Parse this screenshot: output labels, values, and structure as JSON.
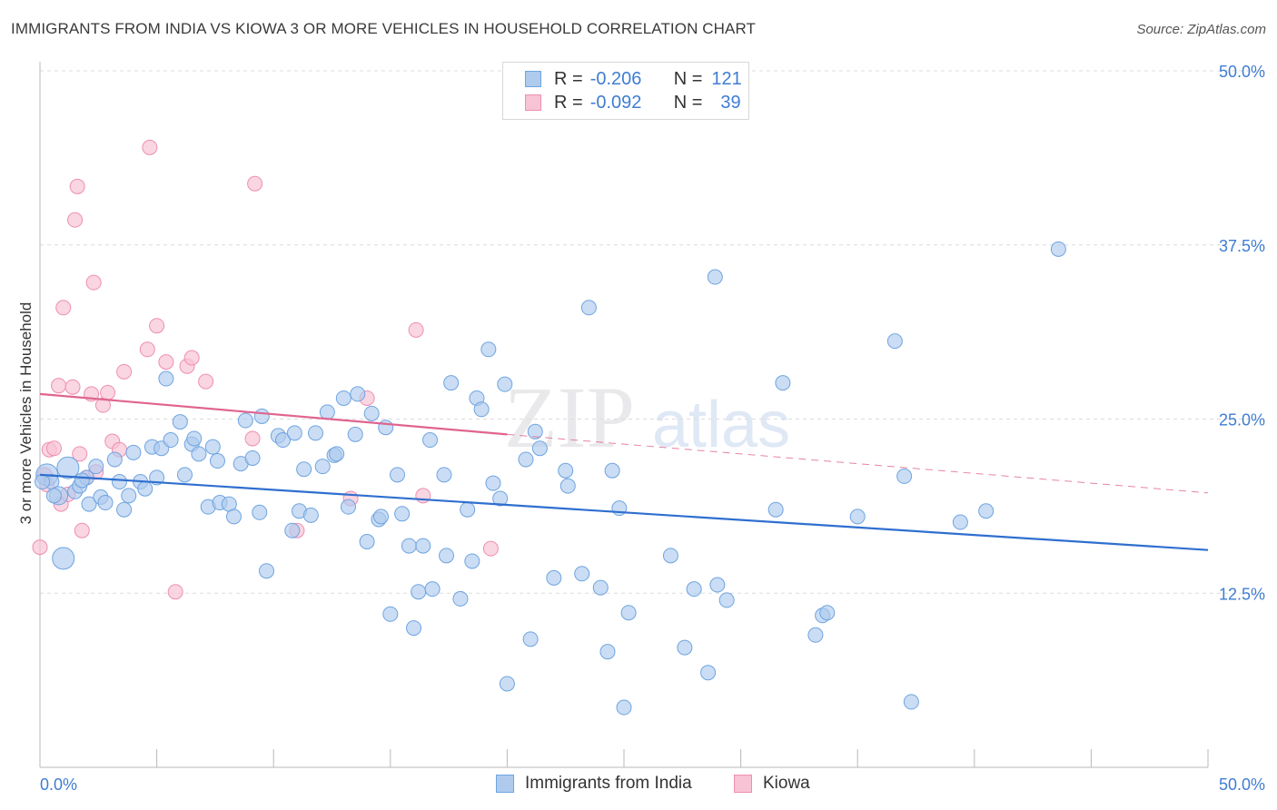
{
  "title": "IMMIGRANTS FROM INDIA VS KIOWA 3 OR MORE VEHICLES IN HOUSEHOLD CORRELATION CHART",
  "source": "Source: ZipAtlas.com",
  "watermark": {
    "zip": "ZIP",
    "atlas": "atlas"
  },
  "legend": {
    "r_label": "R =",
    "n_label": "N =",
    "rows": [
      {
        "r": "-0.206",
        "n": "121",
        "color": "#6fa4e0"
      },
      {
        "r": "-0.092",
        "n": "39",
        "color": "#ee8fb0"
      }
    ]
  },
  "bottom_legend": [
    "Immigrants from India",
    "Kiowa"
  ],
  "colors": {
    "india_fill": "#aecbee",
    "india_stroke": "#6fa4e0",
    "india_line": "#2f6fcf",
    "kiowa_fill": "#f8c3d5",
    "kiowa_stroke": "#ee8fb0",
    "kiowa_line": "#e0648f",
    "tick_label": "#3f7dd2",
    "grid": "#dcdcdc"
  },
  "chart_data": {
    "type": "scatter",
    "title": "IMMIGRANTS FROM INDIA VS KIOWA 3 OR MORE VEHICLES IN HOUSEHOLD CORRELATION CHART",
    "xlabel": "",
    "ylabel": "3 or more Vehicles in Household",
    "xlim": [
      0,
      50
    ],
    "ylim": [
      0,
      50
    ],
    "x_tick_labels": [
      "0.0%",
      "50.0%"
    ],
    "y_ticks": [
      12.5,
      25.0,
      37.5,
      50.0
    ],
    "y_tick_labels": [
      "12.5%",
      "25.0%",
      "37.5%",
      "50.0%"
    ],
    "grid": true,
    "legend_position": "top-center",
    "series": [
      {
        "name": "Immigrants from India",
        "r": -0.206,
        "n": 121,
        "trend": {
          "x": [
            0,
            50
          ],
          "y": [
            21.0,
            15.6
          ]
        },
        "points": [
          [
            0.3,
            21.0
          ],
          [
            0.5,
            20.5
          ],
          [
            0.8,
            19.5
          ],
          [
            1.0,
            15.0
          ],
          [
            1.2,
            21.5
          ],
          [
            1.5,
            19.8
          ],
          [
            1.7,
            20.2
          ],
          [
            2.0,
            20.8
          ],
          [
            2.1,
            18.9
          ],
          [
            2.4,
            21.6
          ],
          [
            2.6,
            19.4
          ],
          [
            2.8,
            19.0
          ],
          [
            3.2,
            22.1
          ],
          [
            3.4,
            20.5
          ],
          [
            3.6,
            18.5
          ],
          [
            3.8,
            19.5
          ],
          [
            4.0,
            22.6
          ],
          [
            4.3,
            20.5
          ],
          [
            4.5,
            20.0
          ],
          [
            4.8,
            23.0
          ],
          [
            5.0,
            20.8
          ],
          [
            5.2,
            22.9
          ],
          [
            5.4,
            27.9
          ],
          [
            5.6,
            23.5
          ],
          [
            6.0,
            24.8
          ],
          [
            6.2,
            21.0
          ],
          [
            6.5,
            23.2
          ],
          [
            6.6,
            23.6
          ],
          [
            6.8,
            22.5
          ],
          [
            7.2,
            18.7
          ],
          [
            7.4,
            23.0
          ],
          [
            7.6,
            22.0
          ],
          [
            7.7,
            19.0
          ],
          [
            8.1,
            18.9
          ],
          [
            8.3,
            18.0
          ],
          [
            8.6,
            21.8
          ],
          [
            8.8,
            24.9
          ],
          [
            9.1,
            22.2
          ],
          [
            9.4,
            18.3
          ],
          [
            9.5,
            25.2
          ],
          [
            9.7,
            14.1
          ],
          [
            10.2,
            23.8
          ],
          [
            10.4,
            23.5
          ],
          [
            10.8,
            17.0
          ],
          [
            10.9,
            24.0
          ],
          [
            11.1,
            18.4
          ],
          [
            11.3,
            21.4
          ],
          [
            11.6,
            18.1
          ],
          [
            11.8,
            24.0
          ],
          [
            12.1,
            21.6
          ],
          [
            12.3,
            25.5
          ],
          [
            12.6,
            22.4
          ],
          [
            12.7,
            22.5
          ],
          [
            13.0,
            26.5
          ],
          [
            13.2,
            18.7
          ],
          [
            13.5,
            23.9
          ],
          [
            13.6,
            26.8
          ],
          [
            14.0,
            16.2
          ],
          [
            14.2,
            25.4
          ],
          [
            14.5,
            17.8
          ],
          [
            14.6,
            18.0
          ],
          [
            14.8,
            24.4
          ],
          [
            15.0,
            11.0
          ],
          [
            15.3,
            21.0
          ],
          [
            15.5,
            18.2
          ],
          [
            15.8,
            15.9
          ],
          [
            16.0,
            10.0
          ],
          [
            16.2,
            12.6
          ],
          [
            16.4,
            15.9
          ],
          [
            16.7,
            23.5
          ],
          [
            16.8,
            12.8
          ],
          [
            17.3,
            21.0
          ],
          [
            17.4,
            15.2
          ],
          [
            17.6,
            27.6
          ],
          [
            18.0,
            12.1
          ],
          [
            18.3,
            18.5
          ],
          [
            18.5,
            14.8
          ],
          [
            18.7,
            26.5
          ],
          [
            18.9,
            25.7
          ],
          [
            19.2,
            30.0
          ],
          [
            19.4,
            20.4
          ],
          [
            19.7,
            19.3
          ],
          [
            19.9,
            27.5
          ],
          [
            20.0,
            6.0
          ],
          [
            20.8,
            22.1
          ],
          [
            21.0,
            9.2
          ],
          [
            21.2,
            24.1
          ],
          [
            21.4,
            22.9
          ],
          [
            22.0,
            13.6
          ],
          [
            22.5,
            21.3
          ],
          [
            22.6,
            20.2
          ],
          [
            23.2,
            13.9
          ],
          [
            23.5,
            33.0
          ],
          [
            24.0,
            12.9
          ],
          [
            24.3,
            8.3
          ],
          [
            24.5,
            21.3
          ],
          [
            24.8,
            18.6
          ],
          [
            25.0,
            4.3
          ],
          [
            25.2,
            11.1
          ],
          [
            27.0,
            15.2
          ],
          [
            27.6,
            8.6
          ],
          [
            28.0,
            12.8
          ],
          [
            28.6,
            6.8
          ],
          [
            28.9,
            35.2
          ],
          [
            29.0,
            13.1
          ],
          [
            29.4,
            12.0
          ],
          [
            31.5,
            18.5
          ],
          [
            31.8,
            27.6
          ],
          [
            33.2,
            9.5
          ],
          [
            33.5,
            10.9
          ],
          [
            33.7,
            11.1
          ],
          [
            35.0,
            18.0
          ],
          [
            36.6,
            30.6
          ],
          [
            37.0,
            20.9
          ],
          [
            37.3,
            4.7
          ],
          [
            39.4,
            17.6
          ],
          [
            40.5,
            18.4
          ],
          [
            43.6,
            37.2
          ],
          [
            0.1,
            20.5
          ],
          [
            0.6,
            19.5
          ],
          [
            1.8,
            20.6
          ]
        ]
      },
      {
        "name": "Kiowa",
        "r": -0.092,
        "n": 39,
        "trend": {
          "x": [
            0,
            20
          ],
          "y": [
            26.8,
            23.9
          ]
        },
        "trend_dashed": {
          "x": [
            20,
            50
          ],
          "y": [
            23.9,
            19.7
          ]
        },
        "points": [
          [
            0.0,
            15.8
          ],
          [
            0.2,
            21.0
          ],
          [
            0.4,
            22.8
          ],
          [
            0.6,
            22.9
          ],
          [
            0.8,
            27.4
          ],
          [
            0.9,
            18.9
          ],
          [
            1.0,
            33.0
          ],
          [
            1.2,
            19.6
          ],
          [
            1.4,
            27.3
          ],
          [
            1.5,
            39.3
          ],
          [
            1.6,
            41.7
          ],
          [
            1.7,
            22.5
          ],
          [
            1.8,
            17.0
          ],
          [
            2.0,
            20.8
          ],
          [
            2.2,
            26.8
          ],
          [
            2.3,
            34.8
          ],
          [
            2.4,
            21.2
          ],
          [
            2.7,
            26.0
          ],
          [
            2.9,
            26.9
          ],
          [
            3.1,
            23.4
          ],
          [
            3.4,
            22.8
          ],
          [
            3.6,
            28.4
          ],
          [
            4.6,
            30.0
          ],
          [
            4.7,
            44.5
          ],
          [
            5.0,
            31.7
          ],
          [
            5.4,
            29.1
          ],
          [
            5.8,
            12.6
          ],
          [
            6.3,
            28.8
          ],
          [
            6.5,
            29.4
          ],
          [
            7.1,
            27.7
          ],
          [
            9.1,
            23.6
          ],
          [
            9.2,
            41.9
          ],
          [
            11.0,
            17.0
          ],
          [
            13.3,
            19.3
          ],
          [
            14.0,
            26.5
          ],
          [
            16.1,
            31.4
          ],
          [
            16.4,
            19.5
          ],
          [
            19.3,
            15.7
          ],
          [
            0.3,
            20.3
          ]
        ]
      }
    ]
  }
}
